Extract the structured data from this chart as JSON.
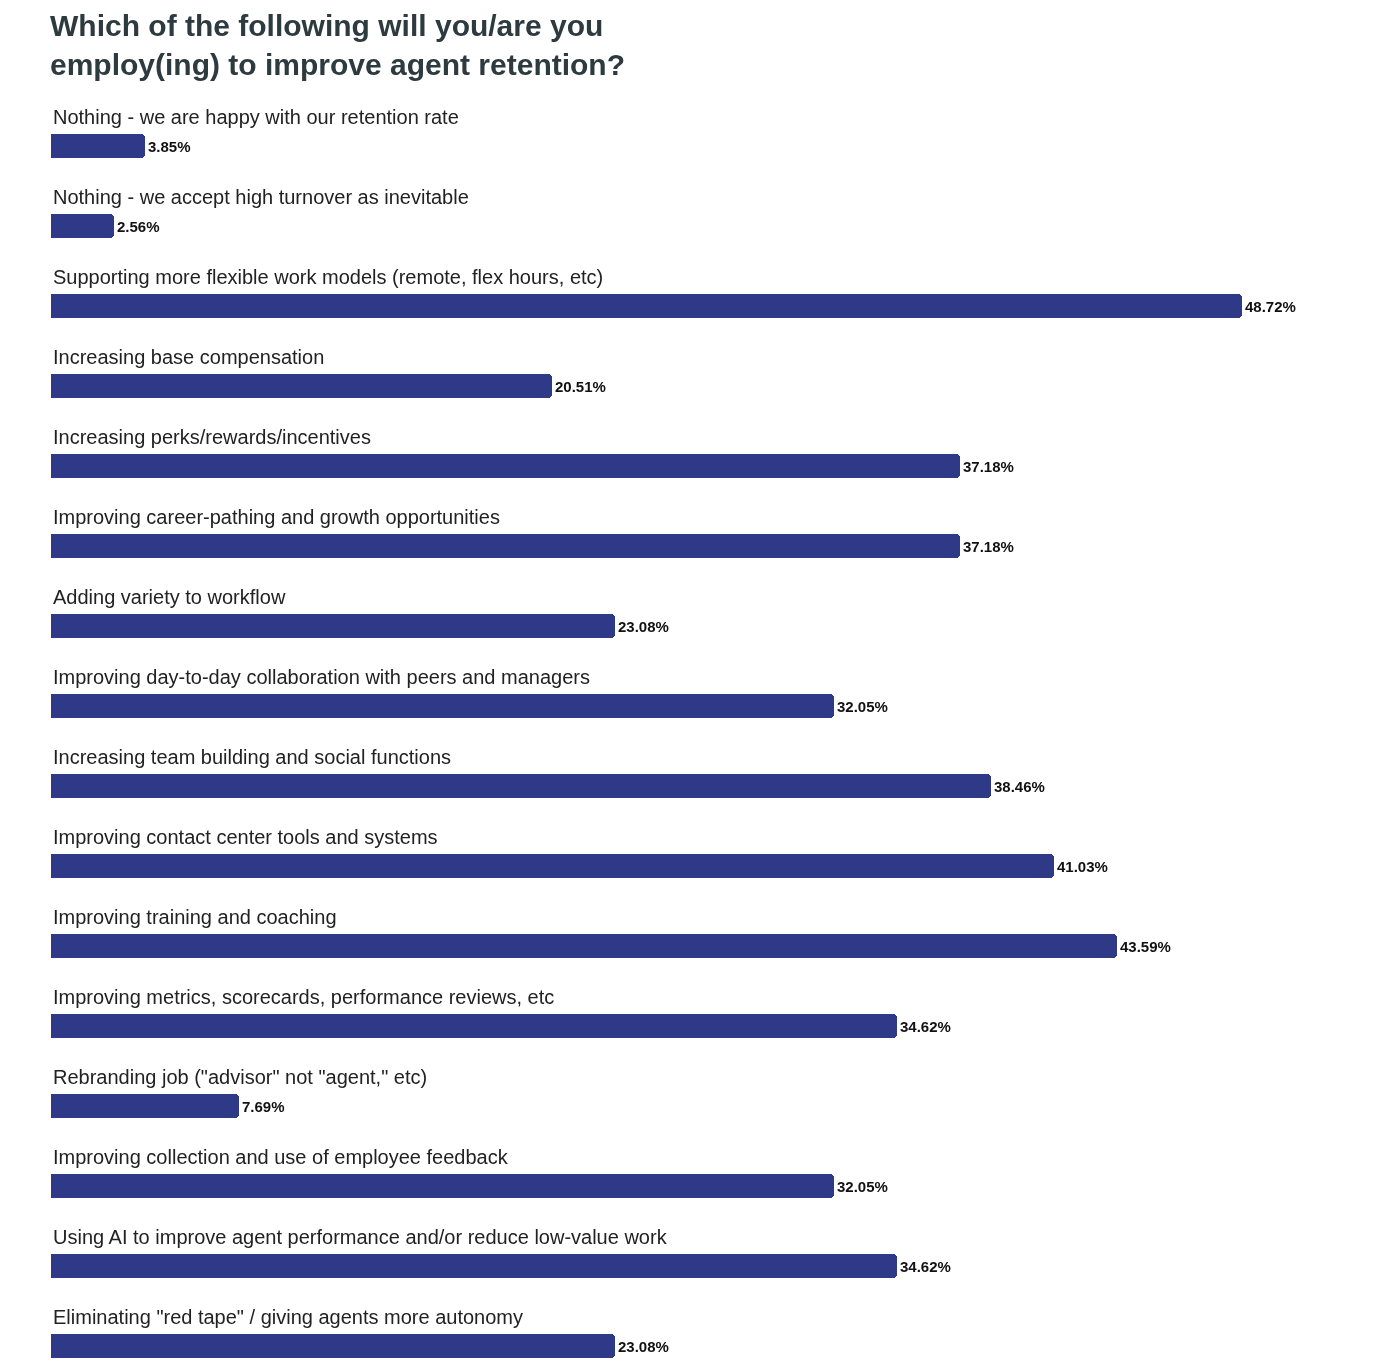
{
  "chart_data": {
    "type": "bar",
    "orientation": "horizontal",
    "title": "Which of the following will you/are you\nemploy(ing) to improve agent retention?",
    "categories": [
      "Nothing - we are happy with our retention rate",
      "Nothing - we accept high turnover as inevitable",
      "Supporting more flexible work models (remote, flex hours, etc)",
      "Increasing base compensation",
      "Increasing perks/rewards/incentives",
      "Improving career-pathing and growth opportunities",
      "Adding variety to workflow",
      "Improving day-to-day collaboration with peers and managers",
      "Increasing team building and social functions",
      "Improving contact center tools and systems",
      "Improving training and coaching",
      "Improving metrics, scorecards, performance reviews, etc",
      "Rebranding job (\"advisor\" not \"agent,\" etc)",
      "Improving collection and use of employee feedback",
      "Using AI to improve agent performance and/or reduce low-value work",
      "Eliminating \"red tape\" / giving agents more autonomy"
    ],
    "values": [
      3.85,
      2.56,
      48.72,
      20.51,
      37.18,
      37.18,
      23.08,
      32.05,
      38.46,
      41.03,
      43.59,
      34.62,
      7.69,
      32.05,
      34.62,
      23.08
    ],
    "value_labels": [
      "3.85%",
      "2.56%",
      "48.72%",
      "20.51%",
      "37.18%",
      "37.18%",
      "23.08%",
      "32.05%",
      "38.46%",
      "41.03%",
      "43.59%",
      "34.62%",
      "7.69%",
      "32.05%",
      "34.62%",
      "23.08%"
    ],
    "color": "#2e3a87",
    "legend": false
  }
}
